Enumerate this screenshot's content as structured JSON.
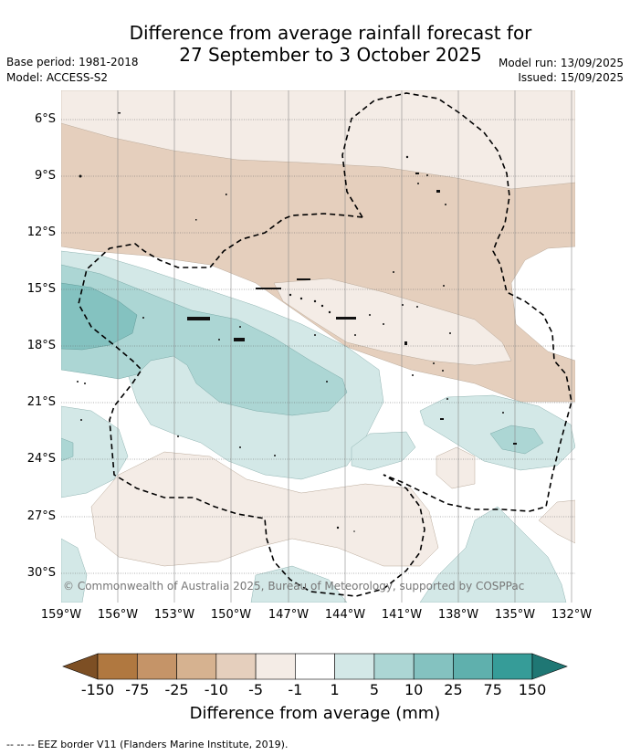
{
  "title": {
    "line1": "Difference from average rainfall forecast for",
    "line2": "27 September to 3 October 2025"
  },
  "meta": {
    "base_period": "Base period: 1981-2018",
    "model": "Model: ACCESS-S2",
    "model_run": "Model run: 13/09/2025",
    "issued": "Issued: 15/09/2025"
  },
  "map": {
    "y_ticks": [
      "6°S",
      "9°S",
      "12°S",
      "15°S",
      "18°S",
      "21°S",
      "24°S",
      "27°S",
      "30°S"
    ],
    "x_ticks": [
      "159°W",
      "156°W",
      "153°W",
      "150°W",
      "147°W",
      "144°W",
      "141°W",
      "138°W",
      "135°W",
      "132°W"
    ],
    "copyright": "© Commonwealth of Australia 2025, Bureau of Meteorology, supported by COSPPac",
    "border_style": "dashed",
    "gridlines": true
  },
  "colorbar": {
    "labels": [
      "-150",
      "-75",
      "-25",
      "-10",
      "-5",
      "-1",
      "1",
      "5",
      "10",
      "25",
      "75",
      "150"
    ],
    "colors": [
      "#7d4f24",
      "#b07840",
      "#c59468",
      "#d6b290",
      "#e5cfbd",
      "#f4ece6",
      "#ffffff",
      "#d3e8e7",
      "#acd6d4",
      "#84c2c0",
      "#5fb0ad",
      "#369c98",
      "#1f7774"
    ],
    "title": "Difference from average (mm)"
  },
  "footer": {
    "legend_text": "--  --  -- EEZ border V11 (Flanders Marine Institute, 2019)."
  }
}
